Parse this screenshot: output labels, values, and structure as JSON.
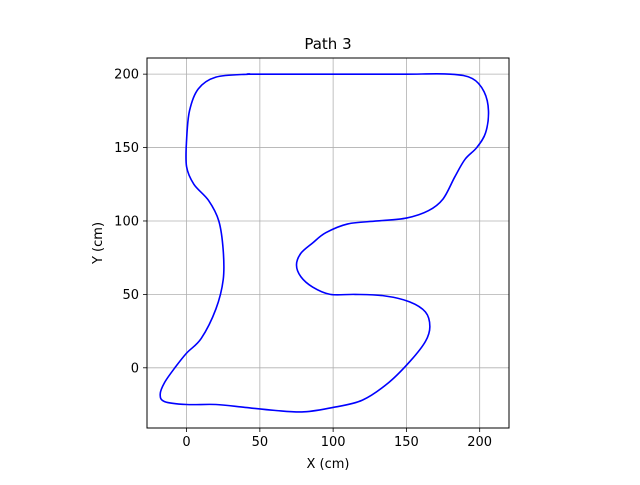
{
  "chart_data": {
    "type": "line",
    "title": "Path 3",
    "xlabel": "X (cm)",
    "ylabel": "Y (cm)",
    "xlim": [
      -27,
      220
    ],
    "ylim": [
      -41,
      211
    ],
    "xticks": [
      0,
      50,
      100,
      150,
      200
    ],
    "yticks": [
      0,
      50,
      100,
      150,
      200
    ],
    "xtick_labels": [
      "0",
      "50",
      "100",
      "150",
      "200"
    ],
    "ytick_labels": [
      "0",
      "50",
      "100",
      "150",
      "200"
    ],
    "grid": true,
    "series": [
      {
        "color": "#0000ff",
        "closed": true,
        "x": [
          42,
          60,
          90,
          120,
          150,
          180,
          195,
          203,
          206,
          204,
          198,
          190,
          183,
          175,
          165,
          150,
          130,
          110,
          95,
          86,
          78,
          75,
          78,
          86,
          98,
          115,
          135,
          152,
          163,
          166,
          163,
          153,
          138,
          120,
          100,
          80,
          60,
          40,
          20,
          0,
          -15,
          -18,
          -15,
          -8,
          0,
          10,
          20,
          25,
          25,
          22,
          15,
          5,
          0,
          0,
          2,
          8,
          20,
          42
        ],
        "y": [
          200,
          200,
          200,
          200,
          200,
          200,
          197,
          188,
          175,
          160,
          150,
          142,
          130,
          115,
          107,
          102,
          100,
          98,
          92,
          85,
          78,
          70,
          62,
          55,
          50,
          50,
          49,
          45,
          38,
          28,
          18,
          5,
          -10,
          -22,
          -27,
          -30,
          -29,
          -27,
          -25,
          -25,
          -23,
          -18,
          -10,
          0,
          10,
          20,
          40,
          60,
          80,
          100,
          114,
          125,
          137,
          155,
          175,
          190,
          198,
          200
        ]
      }
    ]
  }
}
